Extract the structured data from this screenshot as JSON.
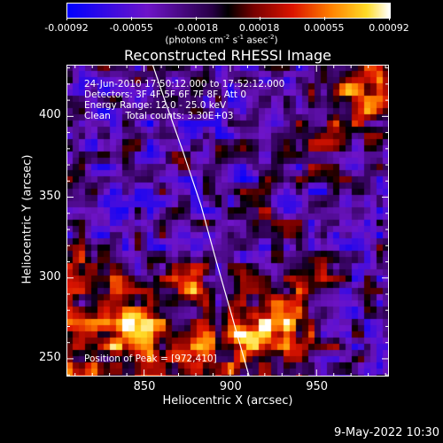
{
  "chart_data": {
    "type": "heatmap",
    "title": "Reconstructed RHESSI Image",
    "xlabel": "Heliocentric X (arcsec)",
    "ylabel": "Heliocentric Y (arcsec)",
    "xlim": [
      805,
      992
    ],
    "ylim": [
      239,
      432
    ],
    "xticks": [
      850,
      900,
      950
    ],
    "yticks": [
      250,
      300,
      350,
      400
    ],
    "colorbar": {
      "ticks": [
        "-0.00092",
        "-0.00055",
        "-0.00018",
        "0.00018",
        "0.00055",
        "0.00092"
      ],
      "tick_values": [
        -0.00092,
        -0.00055,
        -0.00018,
        0.00018,
        0.00055,
        0.00092
      ],
      "range": [
        -0.00092,
        0.00092
      ],
      "unit_label": [
        "(photons cm",
        "-2",
        " s",
        "-1",
        " asec",
        "-2",
        ")"
      ]
    },
    "info_lines": [
      "24-Jun-2010 17:50:12.000 to 17:52:12.000",
      "Detectors: 3F 4F 5F 6F 7F 8F, Att 0",
      "Energy Range: 12.0 - 25.0 keV",
      "Clean     Total counts: 3.30E+03"
    ],
    "peak_label": "Position of Peak = [972,410]",
    "peak": [
      972,
      410
    ],
    "limb_curve": [
      [
        855,
        432
      ],
      [
        862,
        410
      ],
      [
        872,
        380
      ],
      [
        883,
        345
      ],
      [
        892,
        310
      ],
      [
        900,
        280
      ],
      [
        908,
        250
      ],
      [
        911,
        239
      ]
    ],
    "hot_regions": [
      {
        "x": 975,
        "y": 415,
        "r": 18,
        "v": 0.00092
      },
      {
        "x": 955,
        "y": 385,
        "r": 14,
        "v": 0.0006
      },
      {
        "x": 815,
        "y": 305,
        "r": 14,
        "v": 0.00065
      },
      {
        "x": 845,
        "y": 265,
        "r": 22,
        "v": 0.0007
      },
      {
        "x": 905,
        "y": 262,
        "r": 20,
        "v": 0.0008
      },
      {
        "x": 930,
        "y": 270,
        "r": 18,
        "v": 0.00075
      },
      {
        "x": 940,
        "y": 305,
        "r": 14,
        "v": 0.0006
      },
      {
        "x": 880,
        "y": 300,
        "r": 14,
        "v": 0.0005
      },
      {
        "x": 920,
        "y": 345,
        "r": 10,
        "v": 0.00035
      },
      {
        "x": 870,
        "y": 370,
        "r": 8,
        "v": 0.0003
      }
    ]
  },
  "footer": {
    "date": "9-May-2022 10:30"
  }
}
